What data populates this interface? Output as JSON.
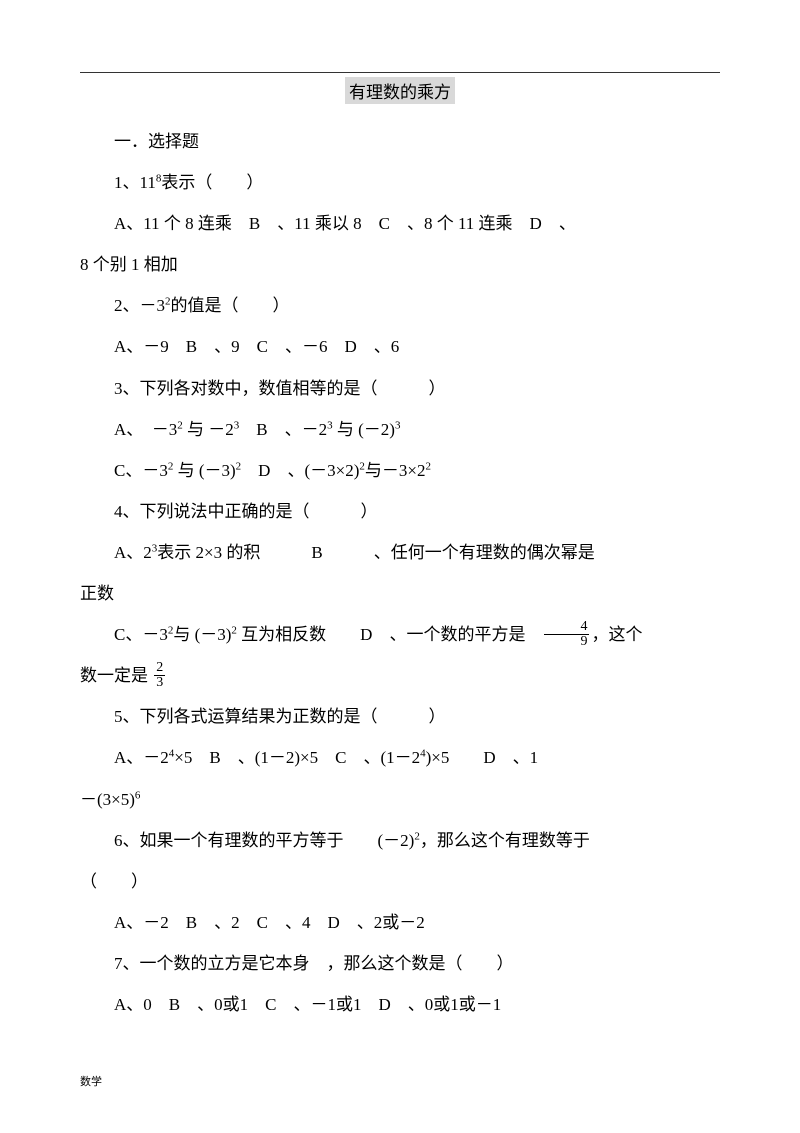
{
  "title": "有理数的乘方",
  "section": "一．选择题",
  "q1": {
    "stem_a": "1、11",
    "sup": "8",
    "stem_b": "表示（　　）",
    "opts": "A、11 个 8 连乘　B　、11 乘以 8　C　、8 个 11 连乘　D　、",
    "cont": "8 个别 1 相加"
  },
  "q2": {
    "stem_a": "2、－3",
    "sup": "2",
    "stem_b": "的值是（　　）",
    "opts": "A、－9　B　、9　C　、－6　D　、6"
  },
  "q3": {
    "stem": "3、下列各对数中，数值相等的是（　　　）",
    "row1_a": "A、　－3",
    "row1_s1": "2",
    "row1_b": " 与 －2",
    "row1_s2": "3",
    "row1_c": "　B　、－2",
    "row1_s3": "3",
    "row1_d": " 与 (－2)",
    "row1_s4": "3",
    "row2_a": "C、－3",
    "row2_s1": "2",
    "row2_b": " 与 (－3)",
    "row2_s2": "2",
    "row2_c": "　D　、(－3×2)",
    "row2_s3": "2",
    "row2_d": "与－3×2",
    "row2_s4": "2"
  },
  "q4": {
    "stem": "4、下列说法中正确的是（　　　）",
    "row1_a": "A、2",
    "row1_s1": "3",
    "row1_b": "表示 2×3 的积　　　B　　　、任何一个有理数的偶次幂是",
    "cont1": "正数",
    "row2_a": "C、－3",
    "row2_s1": "2",
    "row2_b": "与 (－3)",
    "row2_s2": "2",
    "row2_c": " 互为相反数　　D　、一个数的平方是　",
    "frac1_n": "4",
    "frac1_d": "9",
    "row2_d": "，这个",
    "cont2_a": "数一定是 ",
    "frac2_n": "2",
    "frac2_d": "3"
  },
  "q5": {
    "stem": "5、下列各式运算结果为正数的是（　　　）",
    "r_a": "A、－2",
    "s1": "4",
    "r_b": "×5　B　、(1－2)×5　C　、(1－2",
    "s2": "4",
    "r_c": ")×5　　D　、1",
    "cont_a": "－(3×5)",
    "s3": "6"
  },
  "q6": {
    "stem_a": "6、如果一个有理数的平方等于　　(－2)",
    "sup": "2",
    "stem_b": "，那么这个有理数等于",
    "paren": "（　　）",
    "opts": "A、－2　B　、2　C　、4　D　、2或－2"
  },
  "q7": {
    "stem": "7、一个数的立方是它本身　，那么这个数是（　　）",
    "opts": "A、0　B　、0或1　C　、－1或1　D　、0或1或－1"
  },
  "footer": "数学"
}
